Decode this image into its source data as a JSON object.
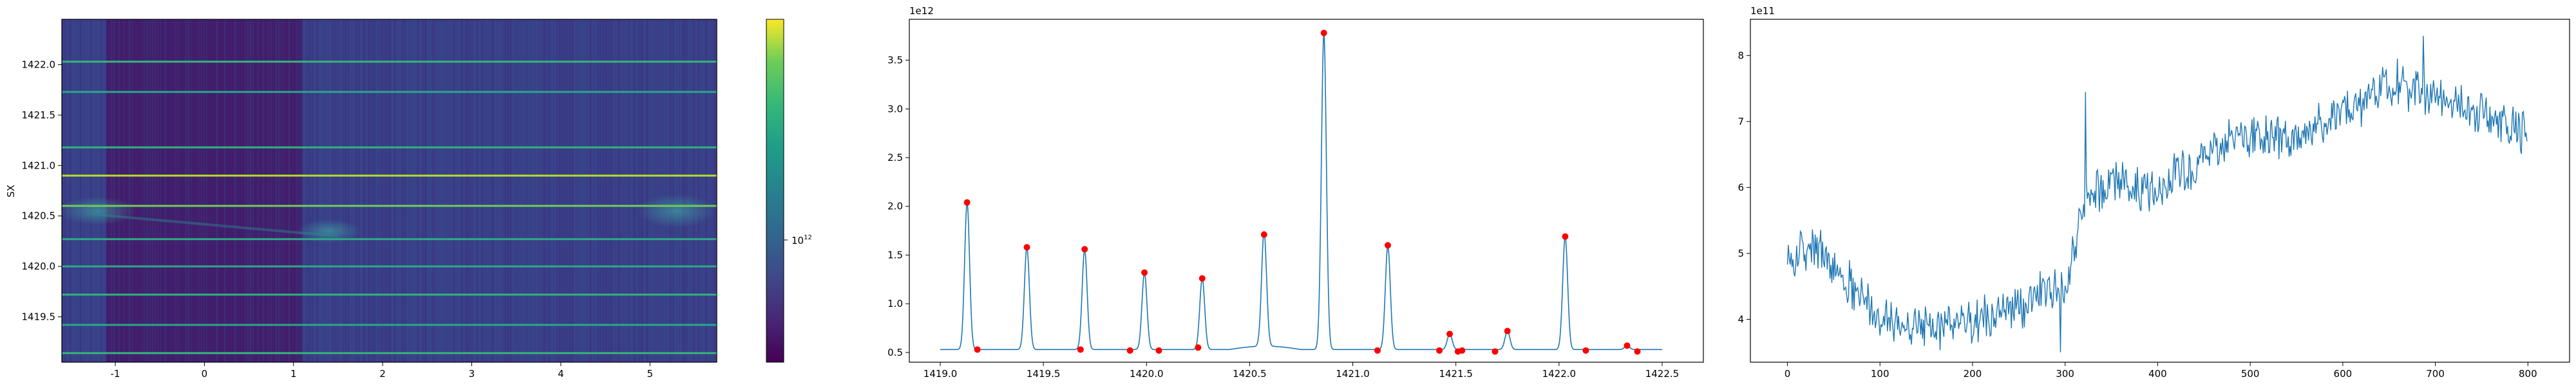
{
  "chart_data": [
    {
      "type": "heatmap",
      "ylabel": "SX",
      "xlim": [
        -1.6,
        5.75
      ],
      "ylim": [
        1419.05,
        1422.45
      ],
      "xticks": [
        "-1",
        "0",
        "1",
        "2",
        "3",
        "4",
        "5"
      ],
      "xtick_values": [
        -1,
        0,
        1,
        2,
        3,
        4,
        5
      ],
      "yticks": [
        "1419.5",
        "1420.0",
        "1420.5",
        "1421.0",
        "1421.5",
        "1422.0"
      ],
      "ytick_values": [
        1419.5,
        1420.0,
        1420.5,
        1421.0,
        1421.5,
        1422.0
      ],
      "colorbar": {
        "scale": "log",
        "tick_label": "10^12",
        "tick_base": "10",
        "tick_exp": "12",
        "colormap": "viridis"
      },
      "bright_rows_y": [
        1419.14,
        1419.42,
        1419.72,
        1420.0,
        1420.27,
        1420.6,
        1420.9,
        1421.18,
        1421.73,
        1422.03
      ]
    },
    {
      "type": "line",
      "offset_label": "1e12",
      "xlim": [
        1418.85,
        1422.7
      ],
      "ylim": [
        0.4,
        3.92
      ],
      "xticks": [
        "1419.0",
        "1419.5",
        "1420.0",
        "1420.5",
        "1421.0",
        "1421.5",
        "1422.0",
        "1422.5"
      ],
      "xtick_values": [
        1419.0,
        1419.5,
        1420.0,
        1420.5,
        1421.0,
        1421.5,
        1422.0,
        1422.5
      ],
      "yticks": [
        "0.5",
        "1.0",
        "1.5",
        "2.0",
        "2.5",
        "3.0",
        "3.5"
      ],
      "ytick_values": [
        0.5,
        1.0,
        1.5,
        2.0,
        2.5,
        3.0,
        3.5
      ],
      "baseline": 0.53,
      "line_color": "#1f77b4",
      "marker_color": "#ff0000",
      "peaks": [
        {
          "x": 1419.13,
          "y": 2.04
        },
        {
          "x": 1419.42,
          "y": 1.58
        },
        {
          "x": 1419.7,
          "y": 1.56
        },
        {
          "x": 1419.99,
          "y": 1.32
        },
        {
          "x": 1420.27,
          "y": 1.26
        },
        {
          "x": 1420.57,
          "y": 1.71
        },
        {
          "x": 1420.86,
          "y": 3.78
        },
        {
          "x": 1421.17,
          "y": 1.6
        },
        {
          "x": 1421.47,
          "y": 0.69
        },
        {
          "x": 1421.75,
          "y": 0.72
        },
        {
          "x": 1422.03,
          "y": 1.69
        },
        {
          "x": 1422.33,
          "y": 0.57
        }
      ],
      "markers": [
        {
          "x": 1419.13,
          "y": 2.04
        },
        {
          "x": 1419.18,
          "y": 0.53
        },
        {
          "x": 1419.42,
          "y": 1.58
        },
        {
          "x": 1419.68,
          "y": 0.53
        },
        {
          "x": 1419.7,
          "y": 1.56
        },
        {
          "x": 1419.92,
          "y": 0.52
        },
        {
          "x": 1419.99,
          "y": 1.32
        },
        {
          "x": 1420.06,
          "y": 0.52
        },
        {
          "x": 1420.25,
          "y": 0.55
        },
        {
          "x": 1420.27,
          "y": 1.26
        },
        {
          "x": 1420.57,
          "y": 1.71
        },
        {
          "x": 1420.86,
          "y": 3.78
        },
        {
          "x": 1421.12,
          "y": 0.52
        },
        {
          "x": 1421.17,
          "y": 1.6
        },
        {
          "x": 1421.42,
          "y": 0.52
        },
        {
          "x": 1421.47,
          "y": 0.69
        },
        {
          "x": 1421.51,
          "y": 0.51
        },
        {
          "x": 1421.53,
          "y": 0.52
        },
        {
          "x": 1421.69,
          "y": 0.51
        },
        {
          "x": 1421.75,
          "y": 0.72
        },
        {
          "x": 1422.03,
          "y": 1.69
        },
        {
          "x": 1422.13,
          "y": 0.52
        },
        {
          "x": 1422.33,
          "y": 0.57
        },
        {
          "x": 1422.38,
          "y": 0.51
        }
      ]
    },
    {
      "type": "line",
      "offset_label": "1e11",
      "xlim": [
        -40,
        845
      ],
      "ylim": [
        3.35,
        8.55
      ],
      "xticks": [
        "0",
        "100",
        "200",
        "300",
        "400",
        "500",
        "600",
        "700",
        "800"
      ],
      "xtick_values": [
        0,
        100,
        200,
        300,
        400,
        500,
        600,
        700,
        800
      ],
      "yticks": [
        "4",
        "5",
        "6",
        "7",
        "8"
      ],
      "ytick_values": [
        4,
        5,
        6,
        7,
        8
      ],
      "line_color": "#1f77b4",
      "n_points": 800,
      "trend": [
        {
          "x": 0,
          "y": 4.9
        },
        {
          "x": 30,
          "y": 5.1
        },
        {
          "x": 60,
          "y": 4.6
        },
        {
          "x": 100,
          "y": 4.05
        },
        {
          "x": 150,
          "y": 3.85
        },
        {
          "x": 200,
          "y": 3.95
        },
        {
          "x": 250,
          "y": 4.2
        },
        {
          "x": 290,
          "y": 4.5
        },
        {
          "x": 300,
          "y": 4.4
        },
        {
          "x": 320,
          "y": 5.8
        },
        {
          "x": 350,
          "y": 6.1
        },
        {
          "x": 400,
          "y": 5.9
        },
        {
          "x": 450,
          "y": 6.5
        },
        {
          "x": 500,
          "y": 6.8
        },
        {
          "x": 550,
          "y": 6.7
        },
        {
          "x": 600,
          "y": 7.1
        },
        {
          "x": 650,
          "y": 7.6
        },
        {
          "x": 700,
          "y": 7.4
        },
        {
          "x": 750,
          "y": 7.1
        },
        {
          "x": 800,
          "y": 6.8
        }
      ],
      "noise_amplitude": 0.28
    }
  ]
}
